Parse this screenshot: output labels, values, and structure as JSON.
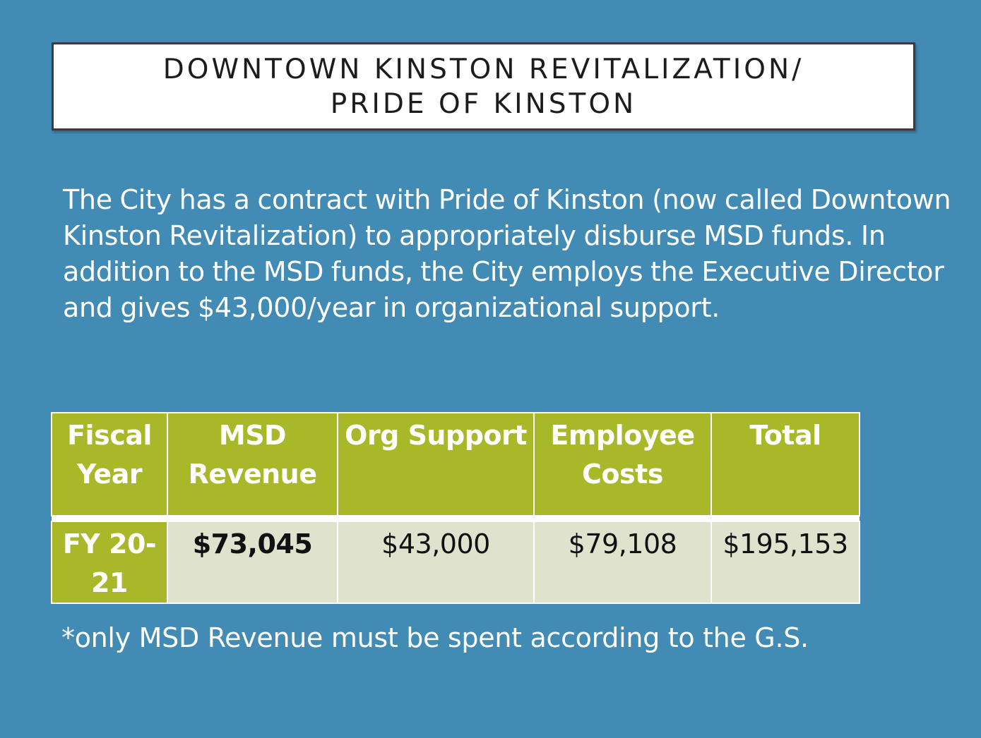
{
  "title": {
    "line1": "DOWNTOWN KINSTON REVITALIZATION/",
    "line2": "PRIDE OF KINSTON"
  },
  "body_text": "The City has a contract with Pride of Kinston (now called Downtown Kinston Revitalization) to appropriately disburse MSD funds. In addition to the MSD funds, the City employs the Executive Director and gives $43,000/year in organizational support.",
  "table": {
    "headers": {
      "fiscal_year": "Fiscal Year",
      "msd_revenue": "MSD Revenue",
      "org_support": "Org Support",
      "employee_costs": "Employee Costs",
      "total": "Total"
    },
    "row": {
      "fiscal_year": "FY 20-21",
      "msd_revenue": "$73,045",
      "org_support": "$43,000",
      "employee_costs": "$79,108",
      "total": "$195,153"
    }
  },
  "footnote": "*only MSD Revenue must be spent according to the G.S.",
  "colors": {
    "background": "#418bb5",
    "header_green": "#a8b829",
    "cell_light": "#dfe3cd"
  }
}
